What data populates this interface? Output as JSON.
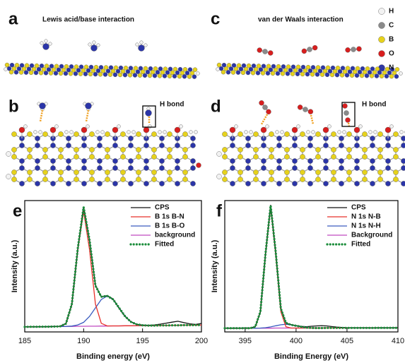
{
  "figure": {
    "panels": [
      {
        "label": "a",
        "title": "Lewis acid/base interaction"
      },
      {
        "label": "b",
        "annotation": "H bond"
      },
      {
        "label": "c",
        "title": "van der Waals interaction"
      },
      {
        "label": "d",
        "annotation": "H bond"
      }
    ],
    "atom_legend": [
      "H",
      "C",
      "B",
      "O",
      "N"
    ]
  },
  "chart_data": [
    {
      "type": "line",
      "panel_label": "e",
      "xlabel": "Binding energy (eV)",
      "ylabel": "Intensity (a.u.)",
      "xlim": [
        185,
        200
      ],
      "xticks": [
        185,
        190,
        195,
        200
      ],
      "ylim": [
        0,
        105
      ],
      "legend": "upper right",
      "x": [
        185,
        185.5,
        186,
        186.5,
        187,
        187.5,
        188,
        188.5,
        189,
        189.5,
        190,
        190.5,
        191,
        191.5,
        192,
        192.5,
        193,
        193.5,
        194,
        194.5,
        195,
        195.5,
        196,
        196.5,
        197,
        197.5,
        198,
        198.5,
        199,
        199.5,
        200
      ],
      "series": [
        {
          "name": "CPS",
          "color": "#111111",
          "values": [
            4.1,
            4.0,
            4.2,
            4.1,
            4.3,
            4.3,
            4.5,
            6.8,
            22.0,
            66.0,
            100.0,
            73.0,
            37.5,
            28.0,
            29.0,
            26.3,
            19.0,
            12.5,
            8.3,
            6.0,
            5.5,
            5.3,
            5.6,
            6.2,
            7.0,
            7.8,
            8.5,
            7.5,
            6.5,
            6.0,
            6.8
          ]
        },
        {
          "name": "B 1s B-N",
          "color": "#e8302a",
          "values": [
            4.0,
            4.1,
            4.1,
            4.2,
            4.2,
            4.3,
            4.4,
            6.6,
            22.1,
            65.5,
            96.5,
            65.6,
            22.3,
            6.9,
            4.8,
            4.8,
            4.8,
            4.9,
            4.9,
            5.0,
            5.0,
            5.1,
            5.1,
            5.2,
            5.2,
            5.3,
            5.3,
            5.4,
            5.4,
            5.5,
            5.5
          ]
        },
        {
          "name": "B 1s B-O",
          "color": "#3a5bbf",
          "values": [
            4.0,
            4.1,
            4.1,
            4.2,
            4.2,
            4.3,
            4.3,
            4.4,
            4.7,
            5.6,
            7.7,
            12.4,
            19.2,
            25.9,
            28.7,
            26.0,
            19.4,
            12.7,
            8.1,
            6.1,
            5.3,
            5.1,
            5.1,
            5.2,
            5.2,
            5.3,
            5.3,
            5.4,
            5.4,
            5.5,
            5.5
          ]
        },
        {
          "name": "background",
          "color": "#c04ac0",
          "values": [
            4.0,
            4.1,
            4.1,
            4.2,
            4.2,
            4.3,
            4.3,
            4.4,
            4.4,
            4.5,
            4.5,
            4.6,
            4.6,
            4.7,
            4.7,
            4.8,
            4.8,
            4.9,
            4.9,
            5.0,
            5.0,
            5.1,
            5.1,
            5.2,
            5.2,
            5.3,
            5.3,
            5.4,
            5.4,
            5.5,
            5.5
          ]
        },
        {
          "name": "Fitted",
          "color": "#1a8c3a",
          "dash": "dotted",
          "values": [
            4.0,
            4.1,
            4.1,
            4.2,
            4.2,
            4.3,
            4.4,
            6.6,
            22.4,
            66.6,
            99.7,
            73.4,
            36.9,
            28.1,
            28.8,
            26.0,
            19.4,
            12.7,
            8.1,
            6.1,
            5.3,
            5.1,
            5.1,
            5.2,
            5.2,
            5.3,
            5.3,
            5.4,
            5.4,
            5.5,
            5.5
          ]
        }
      ]
    },
    {
      "type": "line",
      "panel_label": "f",
      "xlabel": "Binding Energy (eV)",
      "ylabel": "Intensity (a.u.)",
      "xlim": [
        393,
        410
      ],
      "xticks": [
        395,
        400,
        405,
        410
      ],
      "ylim": [
        0,
        105
      ],
      "legend": "upper right",
      "x": [
        393,
        393.5,
        394,
        394.5,
        395,
        395.5,
        396,
        396.5,
        397,
        397.5,
        398,
        398.5,
        399,
        399.5,
        400,
        400.5,
        401,
        401.5,
        402,
        402.5,
        403,
        403.5,
        404,
        404.5,
        405,
        405.5,
        406,
        406.5,
        407,
        407.5,
        408,
        408.5,
        409,
        409.5,
        410
      ],
      "series": [
        {
          "name": "CPS",
          "color": "#111111",
          "values": [
            3.1,
            3.0,
            3.1,
            3.0,
            3.2,
            3.1,
            4.3,
            16.0,
            62.0,
            101.5,
            63.5,
            19.0,
            7.0,
            5.8,
            5.0,
            4.4,
            4.2,
            4.5,
            4.8,
            5.0,
            4.8,
            4.3,
            3.9,
            3.6,
            3.4,
            3.3,
            3.2,
            3.3,
            3.2,
            3.1,
            3.2,
            3.3,
            3.2,
            3.3,
            3.4
          ]
        },
        {
          "name": "N 1s N-B",
          "color": "#e8302a",
          "values": [
            3.0,
            3.0,
            3.0,
            3.0,
            3.0,
            3.0,
            4.1,
            16.1,
            61.9,
            100.0,
            62.0,
            16.2,
            4.2,
            3.1,
            3.1,
            3.1,
            3.1,
            3.1,
            3.1,
            3.1,
            3.2,
            3.2,
            3.2,
            3.2,
            3.2,
            3.2,
            3.2,
            3.2,
            3.2,
            3.2,
            3.3,
            3.3,
            3.3,
            3.3,
            3.3
          ]
        },
        {
          "name": "N 1s N-H",
          "color": "#3a5bbf",
          "values": [
            3.0,
            3.0,
            3.0,
            3.0,
            3.0,
            3.0,
            3.0,
            3.1,
            3.4,
            4.0,
            4.9,
            5.7,
            6.1,
            5.7,
            4.9,
            4.1,
            3.5,
            3.2,
            3.1,
            3.1,
            3.2,
            3.2,
            3.2,
            3.2,
            3.2,
            3.2,
            3.2,
            3.2,
            3.2,
            3.2,
            3.3,
            3.3,
            3.3,
            3.3,
            3.3
          ]
        },
        {
          "name": "Background",
          "color": "#c04ac0",
          "values": [
            3.0,
            3.0,
            3.0,
            3.0,
            3.0,
            3.0,
            3.0,
            3.0,
            3.0,
            3.0,
            3.1,
            3.1,
            3.1,
            3.1,
            3.1,
            3.1,
            3.1,
            3.1,
            3.1,
            3.1,
            3.2,
            3.2,
            3.2,
            3.2,
            3.2,
            3.2,
            3.2,
            3.2,
            3.2,
            3.2,
            3.3,
            3.3,
            3.3,
            3.3,
            3.3
          ]
        },
        {
          "name": "Fitted",
          "color": "#1a8c3a",
          "dash": "dotted",
          "values": [
            3.0,
            3.0,
            3.0,
            3.0,
            3.0,
            3.0,
            4.1,
            16.2,
            62.3,
            101.0,
            63.8,
            18.8,
            7.2,
            5.7,
            4.9,
            4.1,
            3.5,
            3.2,
            3.1,
            3.1,
            3.2,
            3.2,
            3.2,
            3.2,
            3.2,
            3.2,
            3.2,
            3.2,
            3.2,
            3.2,
            3.3,
            3.3,
            3.3,
            3.3,
            3.3
          ]
        }
      ]
    }
  ]
}
